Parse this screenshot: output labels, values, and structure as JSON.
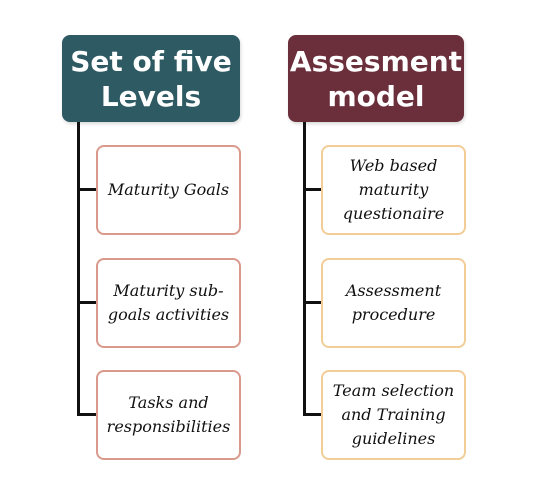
{
  "columns": [
    {
      "header": [
        "Set of five",
        "Levels"
      ],
      "items": [
        [
          "Maturity Goals"
        ],
        [
          "Maturity sub-",
          "goals activities"
        ],
        [
          "Tasks and",
          "responsibilities"
        ]
      ]
    },
    {
      "header": [
        "Assesment",
        "model"
      ],
      "items": [
        [
          "Web based",
          "maturity",
          "questionaire"
        ],
        [
          "Assessment",
          "procedure"
        ],
        [
          "Team selection",
          "and Training",
          "guidelines"
        ]
      ]
    }
  ],
  "colors": {
    "left_header": "#2e5a63",
    "right_header": "#6b2f3c",
    "left_card_border": "#d99a8c",
    "right_card_border": "#f2cd98",
    "connector": "#111111"
  }
}
